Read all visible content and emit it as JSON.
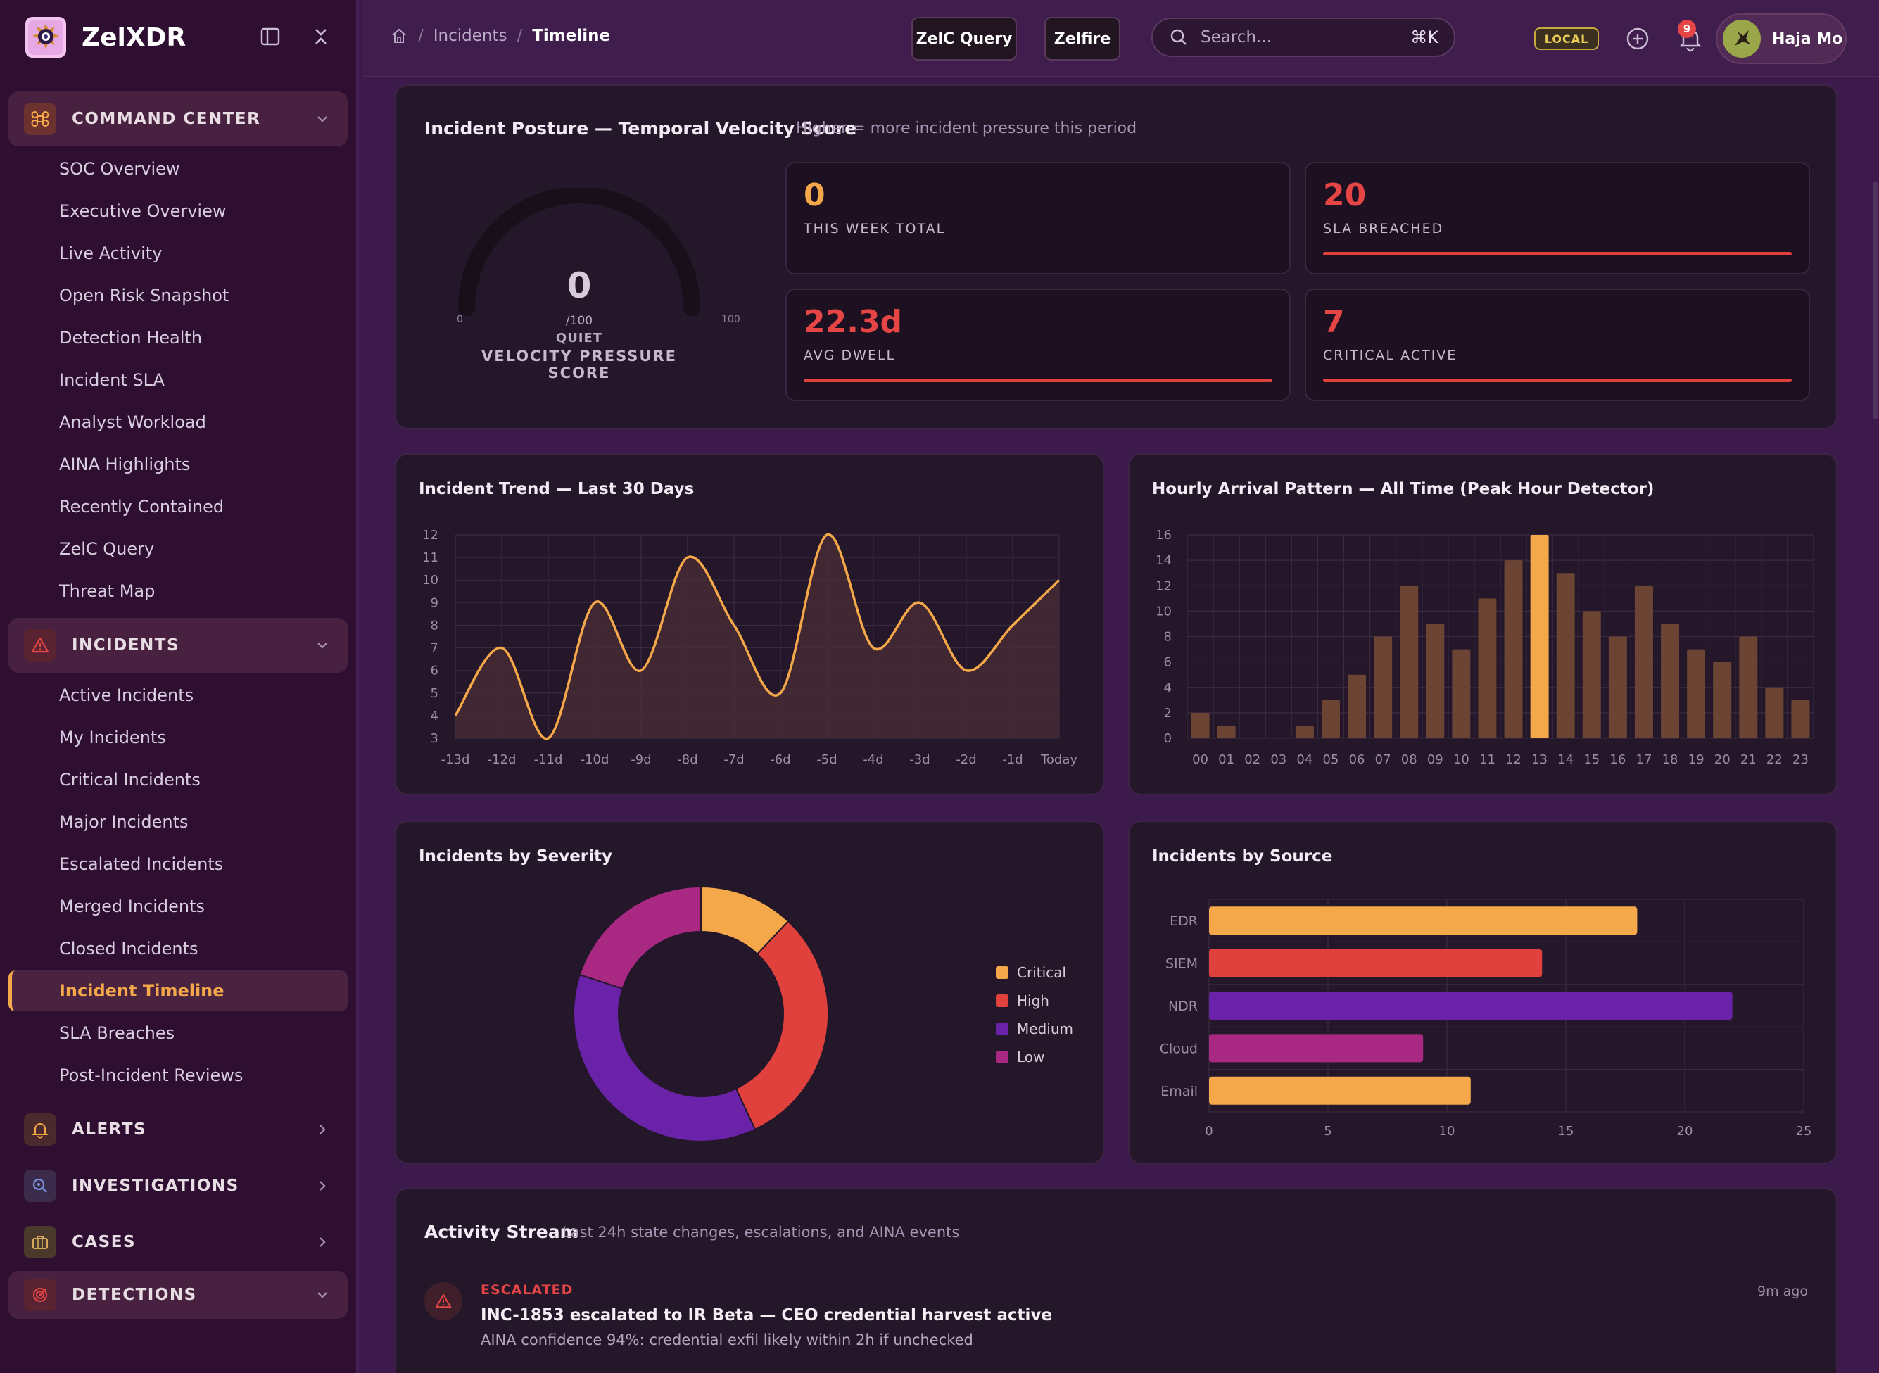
{
  "app": {
    "name": "ZelXDR"
  },
  "sidebar": {
    "sections": [
      {
        "label": "COMMAND CENTER",
        "icon": "command-icon"
      },
      {
        "label": "INCIDENTS",
        "icon": "alert-triangle-icon"
      },
      {
        "label": "ALERTS",
        "icon": "bell-icon"
      },
      {
        "label": "INVESTIGATIONS",
        "icon": "search-magnify-icon"
      },
      {
        "label": "CASES",
        "icon": "briefcase-icon"
      },
      {
        "label": "DETECTIONS",
        "icon": "target-icon"
      }
    ],
    "command_center_items": [
      "SOC Overview",
      "Executive Overview",
      "Live Activity",
      "Open Risk Snapshot",
      "Detection Health",
      "Incident SLA",
      "Analyst Workload",
      "AINA Highlights",
      "Recently Contained",
      "ZelC Query",
      "Threat Map"
    ],
    "incident_items": [
      "Active Incidents",
      "My Incidents",
      "Critical Incidents",
      "Major Incidents",
      "Escalated Incidents",
      "Merged Incidents",
      "Closed Incidents",
      "Incident Timeline",
      "SLA Breaches",
      "Post-Incident Reviews"
    ],
    "active_item": "Incident Timeline"
  },
  "header": {
    "breadcrumb": [
      "Incidents",
      "Timeline"
    ],
    "buttons": {
      "zelc_query": "ZelC Query",
      "zelfire": "Zelfire"
    },
    "search": {
      "placeholder": "Search...",
      "shortcut": "⌘K"
    },
    "env_badge": "LOCAL",
    "notifications": "9",
    "user": "Haja Mo"
  },
  "posture": {
    "title": "Incident Posture — Temporal Velocity Score",
    "subtitle": "Higher = more incident pressure this period",
    "gauge": {
      "value": "0",
      "max_label": "/100",
      "state": "QUIET",
      "label": "VELOCITY PRESSURE SCORE",
      "min": "0",
      "max": "100",
      "fraction": 0
    },
    "kpis": [
      {
        "value": "0",
        "label": "THIS WEEK TOTAL",
        "color": "#f5a849",
        "bar": false
      },
      {
        "value": "20",
        "label": "SLA BREACHED",
        "color": "#e64545",
        "bar": true
      },
      {
        "value": "22.3d",
        "label": "AVG DWELL",
        "color": "#e64545",
        "bar": true
      },
      {
        "value": "7",
        "label": "CRITICAL ACTIVE",
        "color": "#e64545",
        "bar": true
      }
    ]
  },
  "trend_card": {
    "title": "Incident Trend — Last 30 Days"
  },
  "hourly_card": {
    "title": "Hourly Arrival Pattern — All Time (Peak Hour Detector)"
  },
  "severity_card": {
    "title": "Incidents by Severity"
  },
  "source_card": {
    "title": "Incidents by Source"
  },
  "activity": {
    "title": "Activity Stream",
    "subtitle": "Last 24h state changes, escalations, and AINA events",
    "events": [
      {
        "type": "ESCALATED",
        "title": "INC-1853 escalated to IR Beta — CEO credential harvest active",
        "detail": "AINA confidence 94%: credential exfil likely within 2h if unchecked",
        "time": "9m ago"
      }
    ]
  },
  "colors": {
    "accent": "#f5a849",
    "high": "#e0413d",
    "medium": "#6a22a8",
    "low": "#a92882"
  },
  "chart_data": [
    {
      "type": "line",
      "x": [
        "-13d",
        "-12d",
        "-11d",
        "-10d",
        "-9d",
        "-8d",
        "-7d",
        "-6d",
        "-5d",
        "-4d",
        "-3d",
        "-2d",
        "-1d",
        "Today"
      ],
      "values": [
        4,
        7,
        3,
        9,
        6,
        11,
        8,
        5,
        12,
        7,
        9,
        6,
        8,
        10
      ],
      "ylim": [
        3,
        12
      ],
      "yticks": [
        3,
        4,
        5,
        6,
        7,
        8,
        9,
        10,
        11,
        12
      ],
      "grid": true
    },
    {
      "type": "bar",
      "categories": [
        "00",
        "01",
        "02",
        "03",
        "04",
        "05",
        "06",
        "07",
        "08",
        "09",
        "10",
        "11",
        "12",
        "13",
        "14",
        "15",
        "16",
        "17",
        "18",
        "19",
        "20",
        "21",
        "22",
        "23"
      ],
      "values": [
        2,
        1,
        0,
        0,
        1,
        3,
        5,
        8,
        12,
        9,
        7,
        11,
        14,
        16,
        13,
        10,
        8,
        12,
        9,
        7,
        6,
        8,
        4,
        3
      ],
      "highlight": "13",
      "ylim": [
        0,
        16
      ],
      "yticks": [
        0,
        2,
        4,
        6,
        8,
        10,
        12,
        14,
        16
      ],
      "grid": true
    },
    {
      "type": "pie",
      "categories": [
        "Critical",
        "High",
        "Medium",
        "Low"
      ],
      "values": [
        12,
        31,
        37,
        20
      ],
      "colors": [
        "#f5a849",
        "#e0413d",
        "#6a22a8",
        "#a92882"
      ],
      "legend": "right"
    },
    {
      "type": "bar",
      "orientation": "horizontal",
      "categories": [
        "EDR",
        "SIEM",
        "NDR",
        "Cloud",
        "Email"
      ],
      "values": [
        18,
        14,
        22,
        9,
        11
      ],
      "colors": [
        "#f5a849",
        "#e0413d",
        "#6a22a8",
        "#a92882",
        "#f5a849"
      ],
      "xlim": [
        0,
        25
      ],
      "xticks": [
        0,
        5,
        10,
        15,
        20,
        25
      ],
      "grid": true
    }
  ]
}
